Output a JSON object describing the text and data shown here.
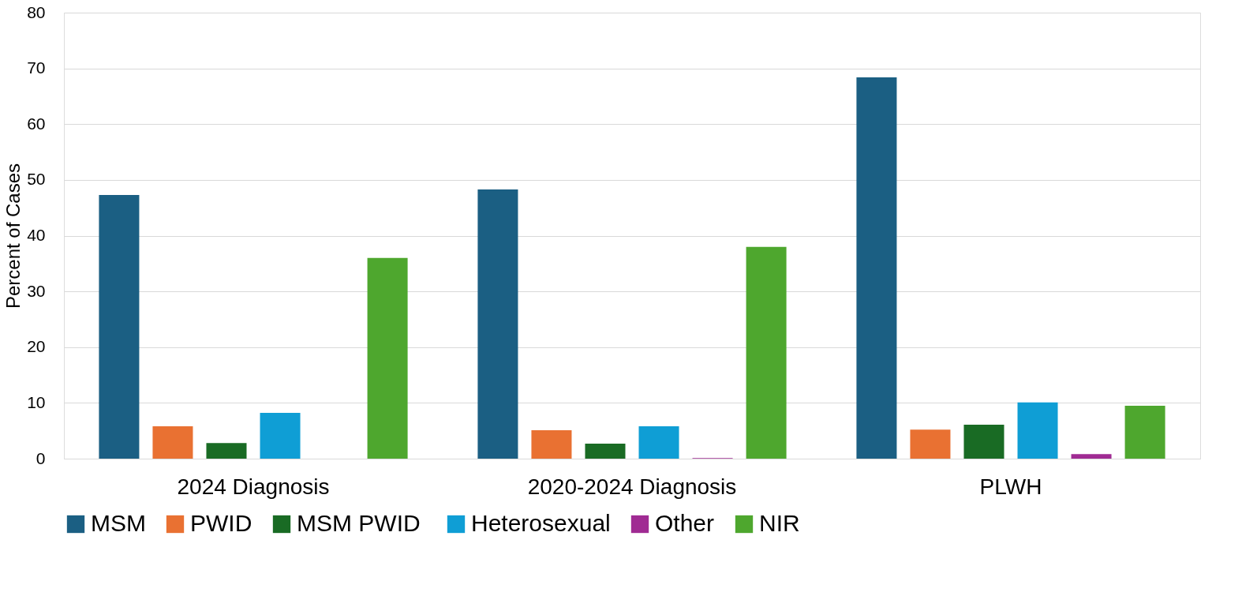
{
  "chart_data": {
    "type": "bar",
    "ylabel": "Percent of Cases",
    "categories": [
      "2024 Diagnosis",
      "2020-2024 Diagnosis",
      "PLWH"
    ],
    "series": [
      {
        "name": "MSM",
        "color": "#1b5f83",
        "values": [
          47.3,
          48.3,
          68.4
        ]
      },
      {
        "name": "PWID",
        "color": "#e97132",
        "values": [
          5.8,
          5.1,
          5.2
        ]
      },
      {
        "name": "MSM  PWID",
        "color": "#196b24",
        "values": [
          2.8,
          2.7,
          6.1
        ]
      },
      {
        "name": "Heterosexual",
        "color": "#0f9ed5",
        "values": [
          8.2,
          5.8,
          10.1
        ]
      },
      {
        "name": "Other",
        "color": "#a02b93",
        "values": [
          null,
          0.1,
          0.8
        ]
      },
      {
        "name": "NIR",
        "color": "#4ea72e",
        "values": [
          36.0,
          38.0,
          9.5
        ]
      }
    ],
    "ylim": [
      0,
      80
    ],
    "yticks": [
      0,
      10,
      20,
      30,
      40,
      50,
      60,
      70,
      80
    ],
    "grid": "y",
    "legend": "bottom"
  }
}
